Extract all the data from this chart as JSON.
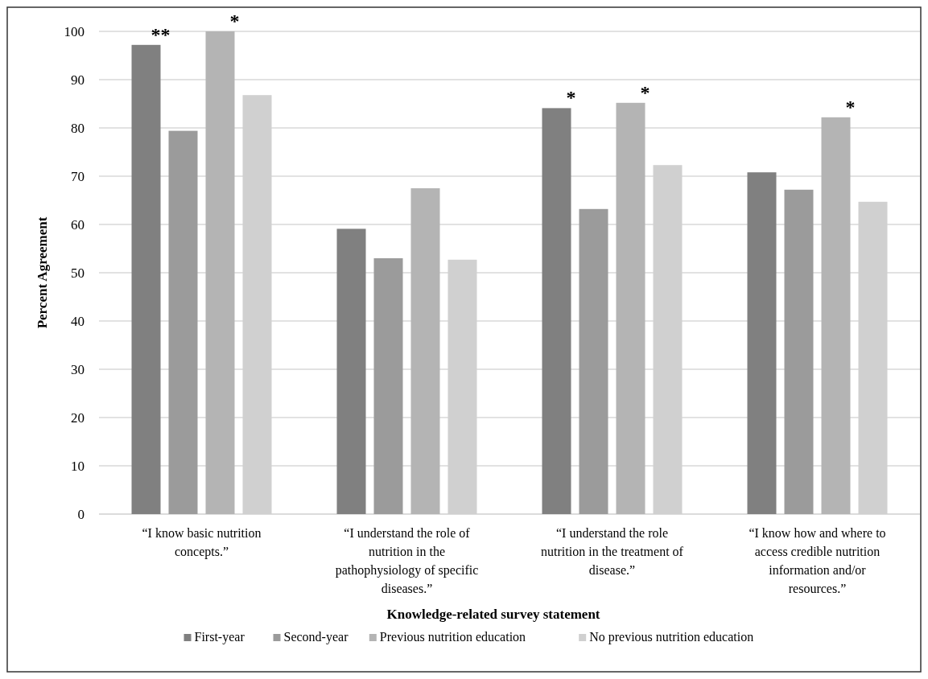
{
  "chart_data": {
    "type": "bar",
    "xlabel": "Knowledge-related survey statement",
    "ylabel": "Percent Agreement",
    "categories": [
      "“I know basic nutrition concepts.”",
      "“I understand the role of nutrition in the pathophysiology of specific diseases.”",
      "“I understand the role nutrition in the treatment of disease.”",
      "“I know how and where to access credible nutrition information and/or resources.”"
    ],
    "series": [
      {
        "name": "First-year",
        "color": "#808080",
        "values": [
          97.2,
          59.1,
          84.1,
          70.8
        ]
      },
      {
        "name": "Second-year",
        "color": "#9b9b9b",
        "values": [
          79.4,
          53.0,
          63.2,
          67.2
        ]
      },
      {
        "name": "Previous nutrition education",
        "color": "#b4b4b4",
        "values": [
          100,
          67.5,
          85.2,
          82.2
        ]
      },
      {
        "name": "No previous nutrition education",
        "color": "#d0d0d0",
        "values": [
          86.8,
          52.7,
          72.3,
          64.7
        ]
      }
    ],
    "ylim": [
      0,
      100
    ],
    "yticks": [
      0,
      10,
      20,
      30,
      40,
      50,
      60,
      70,
      80,
      90,
      100
    ],
    "grid": "y",
    "legend": "bottom",
    "annotations": [
      {
        "text": "**",
        "x": "“I know basic nutrition concepts.”",
        "y": 97.2
      },
      {
        "text": "*",
        "x": "“I know basic nutrition concepts.”",
        "y": 100
      },
      {
        "text": "*",
        "x": "“I understand the role nutrition in the treatment of disease.”",
        "y": 84.1
      },
      {
        "text": "*",
        "x": "“I understand the role nutrition in the treatment of disease.”",
        "y": 85.2
      },
      {
        "text": "*",
        "x": "“I know how and where to access credible nutrition information and/or resources.”",
        "y": 82.2
      }
    ]
  }
}
